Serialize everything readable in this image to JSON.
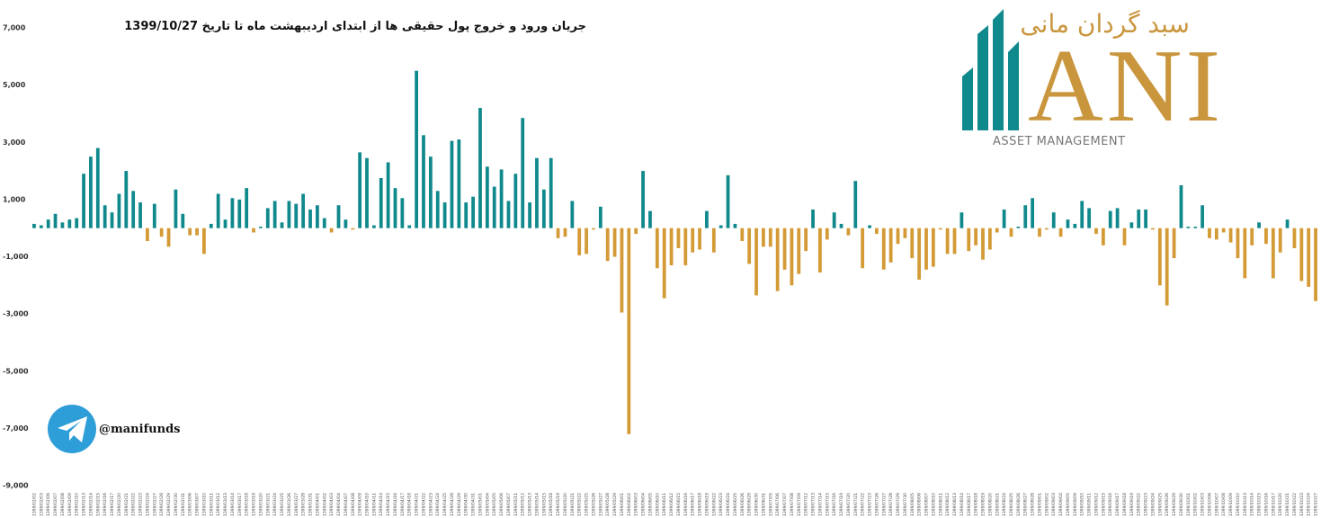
{
  "chart_data": {
    "type": "bar",
    "title": "جریان ورود و خروج پول حقیقی ها از ابتدای اردیبهشت ماه تا تاریخ 1399/10/27",
    "logo": {
      "brand": "سبد گردان مانی",
      "mark": "ANI",
      "subtitle": "ASSET MANAGEMENT"
    },
    "handle": "@manifunds",
    "positive_color": "#10898c",
    "negative_color": "#d39a35",
    "ylim": [
      -9000,
      7000
    ],
    "yticks": [
      {
        "value": 7000,
        "label": "7,000"
      },
      {
        "value": 5000,
        "label": "5,000"
      },
      {
        "value": 3000,
        "label": "3,000"
      },
      {
        "value": 1000,
        "label": "1,000"
      },
      {
        "value": -1000,
        "label": "-1,000"
      },
      {
        "value": -3000,
        "label": "-3,000"
      },
      {
        "value": -5000,
        "label": "-5,000"
      },
      {
        "value": -7000,
        "label": "-7,000"
      },
      {
        "value": -9000,
        "label": "-9,000"
      }
    ],
    "categories": [
      "1399/02/02",
      "1399/02/03",
      "1399/02/06",
      "1399/02/07",
      "1399/02/08",
      "1399/02/09",
      "1399/02/10",
      "1399/02/13",
      "1399/02/14",
      "1399/02/15",
      "1399/02/16",
      "1399/02/17",
      "1399/02/20",
      "1399/02/21",
      "1399/02/22",
      "1399/02/23",
      "1399/02/24",
      "1399/02/27",
      "1399/02/28",
      "1399/02/29",
      "1399/02/30",
      "1399/02/31",
      "1399/03/06",
      "1399/03/07",
      "1399/03/10",
      "1399/03/11",
      "1399/03/12",
      "1399/03/13",
      "1399/03/14",
      "1399/03/17",
      "1399/03/18",
      "1399/03/19",
      "1399/03/20",
      "1399/03/21",
      "1399/03/24",
      "1399/03/25",
      "1399/03/26",
      "1399/03/27",
      "1399/03/28",
      "1399/03/31",
      "1399/04/01",
      "1399/04/02",
      "1399/04/03",
      "1399/04/04",
      "1399/04/07",
      "1399/04/08",
      "1399/04/09",
      "1399/04/10",
      "1399/04/11",
      "1399/04/14",
      "1399/04/15",
      "1399/04/16",
      "1399/04/17",
      "1399/04/18",
      "1399/04/21",
      "1399/04/22",
      "1399/04/23",
      "1399/04/24",
      "1399/04/25",
      "1399/04/28",
      "1399/04/29",
      "1399/04/30",
      "1399/04/31",
      "1399/05/01",
      "1399/05/04",
      "1399/05/05",
      "1399/05/06",
      "1399/05/07",
      "1399/05/11",
      "1399/05/12",
      "1399/05/13",
      "1399/05/14",
      "1399/05/15",
      "1399/05/18",
      "1399/05/19",
      "1399/05/20",
      "1399/05/21",
      "1399/05/22",
      "1399/05/25",
      "1399/05/26",
      "1399/05/27",
      "1399/05/28",
      "1399/05/29",
      "1399/06/01",
      "1399/06/02",
      "1399/06/03",
      "1399/06/04",
      "1399/06/05",
      "1399/06/10",
      "1399/06/11",
      "1399/06/12",
      "1399/06/15",
      "1399/06/16",
      "1399/06/17",
      "1399/06/18",
      "1399/06/19",
      "1399/06/22",
      "1399/06/23",
      "1399/06/24",
      "1399/06/25",
      "1399/06/26",
      "1399/06/29",
      "1399/06/30",
      "1399/06/31",
      "1399/07/05",
      "1399/07/06",
      "1399/07/07",
      "1399/07/08",
      "1399/07/09",
      "1399/07/12",
      "1399/07/13",
      "1399/07/14",
      "1399/07/15",
      "1399/07/16",
      "1399/07/19",
      "1399/07/20",
      "1399/07/21",
      "1399/07/22",
      "1399/07/23",
      "1399/07/26",
      "1399/07/27",
      "1399/07/28",
      "1399/07/29",
      "1399/07/30",
      "1399/08/05",
      "1399/08/06",
      "1399/08/07",
      "1399/08/10",
      "1399/08/11",
      "1399/08/12",
      "1399/08/13",
      "1399/08/14",
      "1399/08/17",
      "1399/08/18",
      "1399/08/19",
      "1399/08/20",
      "1399/08/21",
      "1399/08/24",
      "1399/08/25",
      "1399/08/26",
      "1399/08/27",
      "1399/08/28",
      "1399/09/01",
      "1399/09/02",
      "1399/09/03",
      "1399/09/04",
      "1399/09/05",
      "1399/09/09",
      "1399/09/10",
      "1399/09/11",
      "1399/09/12",
      "1399/09/15",
      "1399/09/16",
      "1399/09/17",
      "1399/09/18",
      "1399/09/19",
      "1399/09/22",
      "1399/09/23",
      "1399/09/24",
      "1399/09/25",
      "1399/09/26",
      "1399/09/29",
      "1399/09/30",
      "1399/10/01",
      "1399/10/02",
      "1399/10/03",
      "1399/10/06",
      "1399/10/07",
      "1399/10/08",
      "1399/10/09",
      "1399/10/10",
      "1399/10/13",
      "1399/10/14",
      "1399/10/15",
      "1399/10/16",
      "1399/10/17",
      "1399/10/20",
      "1399/10/21",
      "1399/10/22",
      "1399/10/23",
      "1399/10/24",
      "1399/10/27"
    ],
    "values": [
      150,
      100,
      300,
      500,
      200,
      300,
      350,
      1900,
      2500,
      2800,
      800,
      550,
      1200,
      2000,
      1300,
      900,
      -450,
      850,
      -300,
      -650,
      1350,
      500,
      -250,
      -250,
      -900,
      150,
      1200,
      300,
      1050,
      1000,
      1400,
      -150,
      50,
      700,
      950,
      200,
      950,
      850,
      1200,
      650,
      800,
      350,
      -150,
      800,
      300,
      -50,
      2650,
      2450,
      100,
      1750,
      2300,
      1400,
      1050,
      100,
      5500,
      3250,
      2500,
      1300,
      900,
      3050,
      3100,
      900,
      1100,
      4200,
      2150,
      1450,
      2050,
      950,
      1900,
      3850,
      900,
      2450,
      1350,
      2450,
      -350,
      -300,
      950,
      -950,
      -900,
      -50,
      750,
      -1150,
      -1000,
      -2950,
      -7200,
      -200,
      2000,
      600,
      -1400,
      -2450,
      -1300,
      -700,
      -1300,
      -850,
      -750,
      600,
      -850,
      100,
      1850,
      150,
      -450,
      -1250,
      -2350,
      -650,
      -650,
      -2200,
      -1450,
      -2000,
      -1600,
      -800,
      650,
      -1550,
      -400,
      550,
      150,
      -250,
      1650,
      -1400,
      100,
      -200,
      -1450,
      -1200,
      -550,
      -350,
      -1050,
      -1800,
      -1450,
      -1350,
      -50,
      -900,
      -900,
      550,
      -800,
      -600,
      -1100,
      -750,
      -150,
      650,
      -300,
      50,
      800,
      1050,
      -300,
      -50,
      550,
      -300,
      300,
      150,
      950,
      700,
      -200,
      -600,
      600,
      700,
      -600,
      200,
      650,
      650,
      -50,
      -2000,
      -2700,
      -1050,
      1500,
      50,
      50,
      800,
      -350,
      -400,
      -150,
      -500,
      -1050,
      -1750,
      -600,
      200,
      -550,
      -1750,
      -850,
      300,
      -700,
      -1850,
      -2050,
      -2550
    ]
  }
}
